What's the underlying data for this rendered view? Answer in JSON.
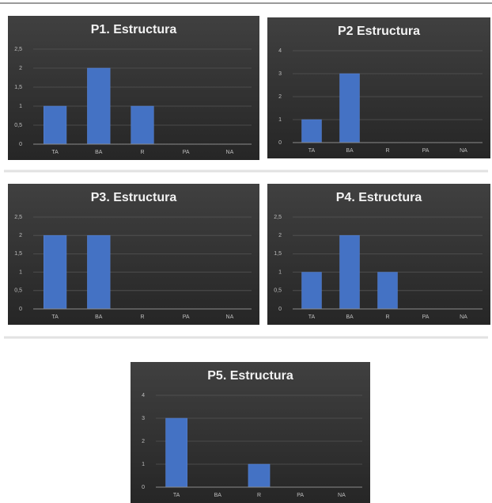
{
  "chart_data": [
    {
      "type": "bar",
      "title": "P1. Estructura",
      "categories": [
        "TA",
        "BA",
        "R",
        "PA",
        "NA"
      ],
      "values": [
        1,
        2,
        1,
        0,
        0
      ],
      "color": "#4472c4",
      "ylim": [
        0,
        2.5
      ],
      "yticks": [
        0,
        {
          "value": 0.5,
          "label": "0,5"
        },
        1,
        {
          "value": 1.5,
          "label": "1,5"
        },
        2,
        {
          "value": 2.5,
          "label": "2,5"
        }
      ],
      "grid": true
    },
    {
      "type": "bar",
      "title": "P2 Estructura",
      "categories": [
        "TA",
        "BA",
        "R",
        "PA",
        "NA"
      ],
      "values": [
        1,
        3,
        0,
        0,
        0
      ],
      "color": "#4472c4",
      "ylim": [
        0,
        4
      ],
      "yticks": [
        0,
        1,
        2,
        3,
        4
      ],
      "grid": true
    },
    {
      "type": "bar",
      "title": "P3. Estructura",
      "categories": [
        "TA",
        "BA",
        "R",
        "PA",
        "NA"
      ],
      "values": [
        2,
        2,
        0,
        0,
        0
      ],
      "color": "#4472c4",
      "ylim": [
        0,
        2.5
      ],
      "yticks": [
        0,
        {
          "value": 0.5,
          "label": "0,5"
        },
        1,
        {
          "value": 1.5,
          "label": "1,5"
        },
        2,
        {
          "value": 2.5,
          "label": "2,5"
        }
      ],
      "grid": true
    },
    {
      "type": "bar",
      "title": "P4. Estructura",
      "categories": [
        "TA",
        "BA",
        "R",
        "PA",
        "NA"
      ],
      "values": [
        1,
        2,
        1,
        0,
        0
      ],
      "color": "#4472c4",
      "ylim": [
        0,
        2.5
      ],
      "yticks": [
        0,
        {
          "value": 0.5,
          "label": "0,5"
        },
        1,
        {
          "value": 1.5,
          "label": "1,5"
        },
        2,
        {
          "value": 2.5,
          "label": "2,5"
        }
      ],
      "grid": true
    },
    {
      "type": "bar",
      "title": "P5. Estructura",
      "categories": [
        "TA",
        "BA",
        "R",
        "PA",
        "NA"
      ],
      "values": [
        3,
        0,
        1,
        0,
        0
      ],
      "color": "#4472c4",
      "ylim": [
        0,
        4
      ],
      "yticks": [
        0,
        1,
        2,
        3,
        4
      ],
      "grid": true
    }
  ]
}
